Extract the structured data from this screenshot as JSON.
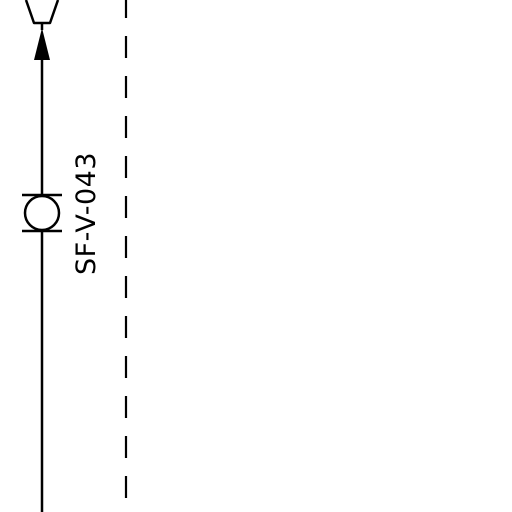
{
  "diagram": {
    "valve_tag": "SF-V-043",
    "colors": {
      "line": "#000000",
      "background": "#ffffff"
    },
    "symbols": [
      "reducer-cone",
      "flow-arrow",
      "valve-symbol",
      "process-line",
      "boundary-dashed-line"
    ]
  }
}
